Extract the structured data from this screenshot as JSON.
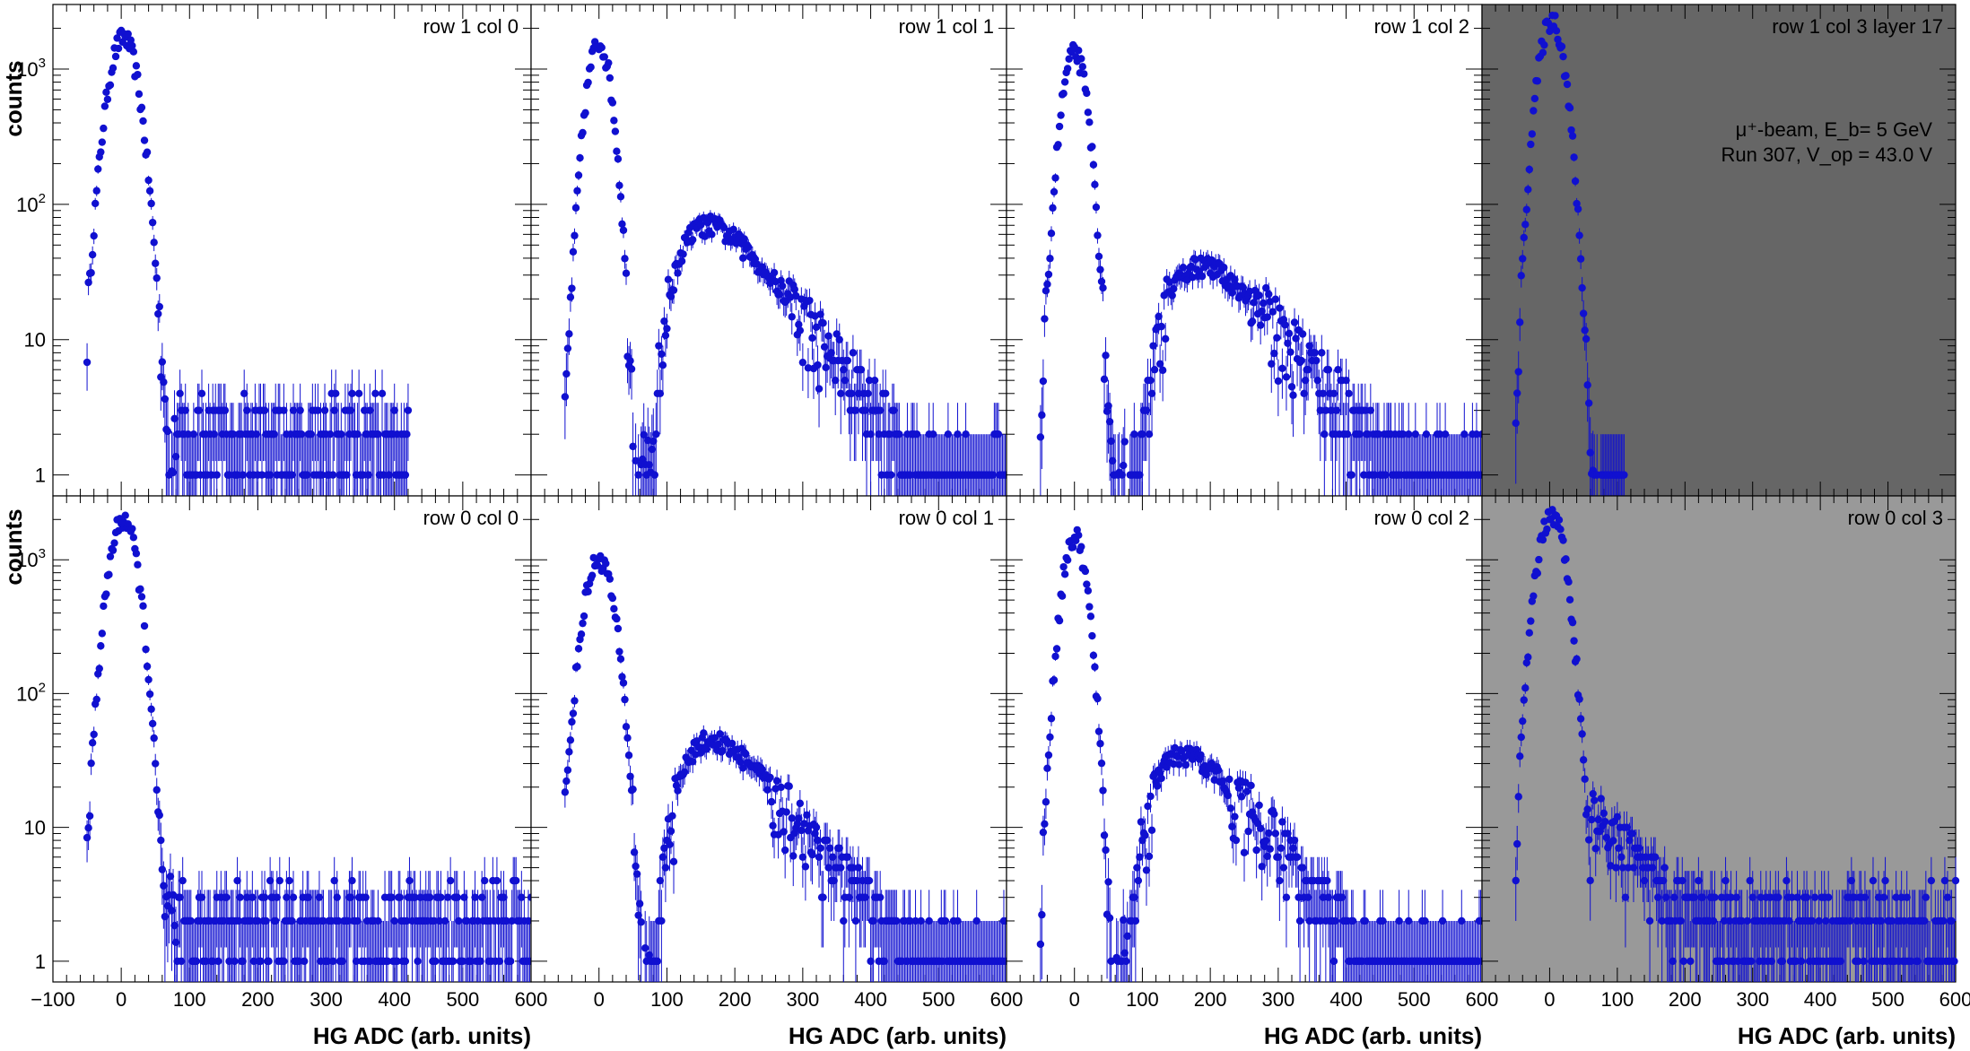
{
  "figure": {
    "info_line1": "μ⁺-beam, E_b= 5 GeV",
    "info_line2": "Run 307, V_op = 43.0 V",
    "marker_color": "#1010d0"
  },
  "chart_data": [
    {
      "type": "scatter",
      "row": 1,
      "col": 0,
      "label": "row 1 col 0",
      "background": "#ffffff",
      "x_range": [
        -100,
        600
      ],
      "y_range": [
        0.7,
        3000
      ],
      "y_scale": "log",
      "xlabel": "",
      "ylabel": "counts",
      "shape": {
        "ped_peak": 1700,
        "ped_mean": 3,
        "ped_sigma": 17,
        "mip_peak": 0,
        "mip_mpv": 170,
        "mip_width": 60,
        "floor": 2,
        "tail_cut": 420
      }
    },
    {
      "type": "scatter",
      "row": 1,
      "col": 1,
      "label": "row 1 col 1",
      "background": "#ffffff",
      "x_range": [
        -100,
        600
      ],
      "y_range": [
        0.7,
        3000
      ],
      "y_scale": "log",
      "xlabel": "",
      "ylabel": "",
      "shape": {
        "ped_peak": 1550,
        "ped_mean": 0,
        "ped_sigma": 14,
        "mip_peak": 70,
        "mip_mpv": 160,
        "mip_width": 55,
        "floor": 1,
        "tail_cut": 600
      }
    },
    {
      "type": "scatter",
      "row": 1,
      "col": 2,
      "label": "row 1 col 2",
      "background": "#ffffff",
      "x_range": [
        -100,
        600
      ],
      "y_range": [
        0.7,
        3000
      ],
      "y_scale": "log",
      "xlabel": "",
      "ylabel": "",
      "shape": {
        "ped_peak": 1300,
        "ped_mean": 0,
        "ped_sigma": 14,
        "mip_peak": 35,
        "mip_mpv": 185,
        "mip_width": 60,
        "floor": 1,
        "tail_cut": 600
      }
    },
    {
      "type": "scatter",
      "row": 1,
      "col": 3,
      "label": "row 1 col 3 layer 17",
      "background": "#666666",
      "x_range": [
        -100,
        600
      ],
      "y_range": [
        0.7,
        3000
      ],
      "y_scale": "log",
      "xlabel": "",
      "ylabel": "",
      "shape": {
        "ped_peak": 2300,
        "ped_mean": 3,
        "ped_sigma": 15,
        "mip_peak": 0,
        "mip_mpv": 170,
        "mip_width": 60,
        "floor": 0,
        "tail_cut": 110
      }
    },
    {
      "type": "scatter",
      "row": 0,
      "col": 0,
      "label": "row 0 col 0",
      "background": "#ffffff",
      "x_range": [
        -100,
        600
      ],
      "y_range": [
        0.7,
        3000
      ],
      "y_scale": "log",
      "xlabel": "HG ADC (arb. units)",
      "ylabel": "counts",
      "shape": {
        "ped_peak": 2000,
        "ped_mean": 3,
        "ped_sigma": 16,
        "mip_peak": 0,
        "mip_mpv": 170,
        "mip_width": 60,
        "floor": 2,
        "tail_cut": 600
      }
    },
    {
      "type": "scatter",
      "row": 0,
      "col": 1,
      "label": "row 0 col 1",
      "background": "#ffffff",
      "x_range": [
        -100,
        600
      ],
      "y_range": [
        0.7,
        3000
      ],
      "y_scale": "log",
      "xlabel": "HG ADC (arb. units)",
      "ylabel": "",
      "shape": {
        "ped_peak": 1000,
        "ped_mean": 0,
        "ped_sigma": 17,
        "mip_peak": 45,
        "mip_mpv": 165,
        "mip_width": 55,
        "floor": 1,
        "tail_cut": 600
      }
    },
    {
      "type": "scatter",
      "row": 0,
      "col": 2,
      "label": "row 0 col 2",
      "background": "#ffffff",
      "x_range": [
        -100,
        600
      ],
      "y_range": [
        0.7,
        3000
      ],
      "y_scale": "log",
      "xlabel": "HG ADC (arb. units)",
      "ylabel": "",
      "shape": {
        "ped_peak": 1450,
        "ped_mean": 0,
        "ped_sigma": 14,
        "mip_peak": 35,
        "mip_mpv": 160,
        "mip_width": 55,
        "floor": 1,
        "tail_cut": 600
      }
    },
    {
      "type": "scatter",
      "row": 0,
      "col": 3,
      "label": "row 0 col 3",
      "background": "#999999",
      "x_range": [
        -100,
        600
      ],
      "y_range": [
        0.7,
        3000
      ],
      "y_scale": "log",
      "xlabel": "HG ADC (arb. units)",
      "ylabel": "",
      "shape": {
        "ped_peak": 2200,
        "ped_mean": 3,
        "ped_sigma": 16,
        "mip_peak": 0,
        "mip_mpv": 170,
        "mip_width": 60,
        "floor": 2,
        "tail_cut": 600,
        "slow_tail": 12
      }
    }
  ],
  "axes": {
    "x_ticks_first_col": [
      "−100",
      "0",
      "100",
      "200",
      "300",
      "400",
      "500",
      "600"
    ],
    "x_ticks_other_cols": [
      "0",
      "100",
      "200",
      "300",
      "400",
      "500",
      "600"
    ],
    "x_tick_values": [
      -100,
      0,
      100,
      200,
      300,
      400,
      500,
      600
    ],
    "y_ticks": [
      {
        "value": 1,
        "label": "1"
      },
      {
        "value": 10,
        "label": "10"
      },
      {
        "value": 100,
        "label": "10",
        "exp": "2"
      },
      {
        "value": 1000,
        "label": "10",
        "exp": "3"
      }
    ]
  }
}
